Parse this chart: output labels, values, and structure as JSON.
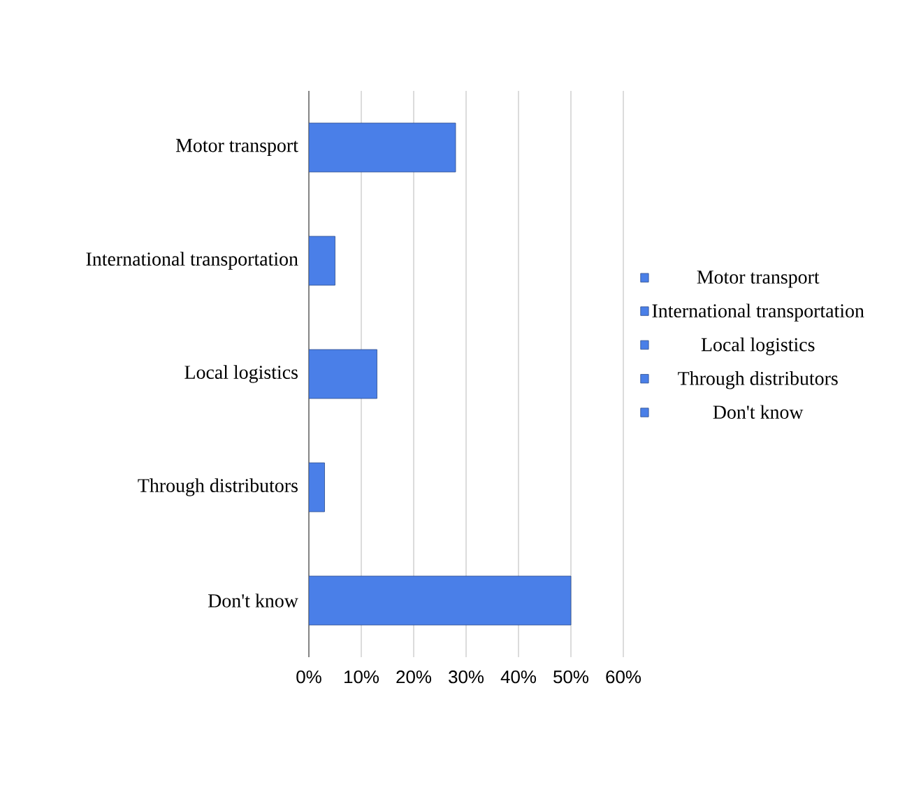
{
  "chart_data": {
    "type": "bar",
    "orientation": "horizontal",
    "categories": [
      "Motor transport",
      "International transportation",
      "Local logistics",
      "Through distributors",
      "Don't know"
    ],
    "series": [
      {
        "name": "Motor transport",
        "color": "#4a7fe8",
        "values": [
          28,
          null,
          null,
          null,
          null
        ]
      },
      {
        "name": "International transportation",
        "color": "#4a7fe8",
        "values": [
          null,
          5,
          null,
          null,
          null
        ]
      },
      {
        "name": "Local logistics",
        "color": "#4a7fe8",
        "values": [
          null,
          null,
          13,
          null,
          null
        ]
      },
      {
        "name": "Through distributors",
        "color": "#4a7fe8",
        "values": [
          null,
          null,
          null,
          3,
          null
        ]
      },
      {
        "name": "Don't know",
        "color": "#4a7fe8",
        "values": [
          null,
          null,
          null,
          null,
          50
        ]
      }
    ],
    "xlim": [
      0,
      60
    ],
    "xticks": [
      {
        "value": 0,
        "label": "0%"
      },
      {
        "value": 10,
        "label": "10%"
      },
      {
        "value": 20,
        "label": "20%"
      },
      {
        "value": 30,
        "label": "30%"
      },
      {
        "value": 40,
        "label": "40%"
      },
      {
        "value": 50,
        "label": "50%"
      },
      {
        "value": 60,
        "label": "60%"
      }
    ],
    "grid": "x",
    "legend": "right"
  }
}
